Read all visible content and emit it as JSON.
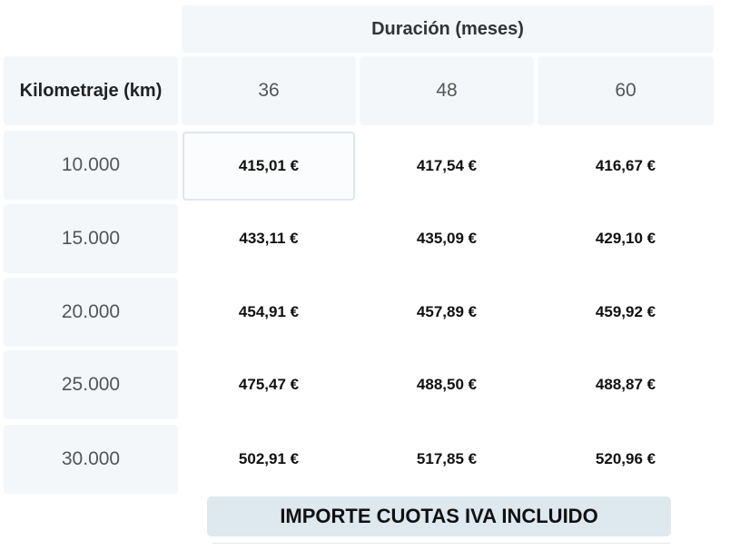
{
  "table": {
    "duration_header": "Duración (meses)",
    "km_header": "Kilometraje (km)",
    "durations": [
      "36",
      "48",
      "60"
    ],
    "rows": [
      {
        "km": "10.000",
        "prices": [
          "415,01 €",
          "417,54 €",
          "416,67 €"
        ]
      },
      {
        "km": "15.000",
        "prices": [
          "433,11 €",
          "435,09 €",
          "429,10 €"
        ]
      },
      {
        "km": "20.000",
        "prices": [
          "454,91 €",
          "457,89 €",
          "459,92 €"
        ]
      },
      {
        "km": "25.000",
        "prices": [
          "475,47 €",
          "488,50 €",
          "488,87 €"
        ]
      },
      {
        "km": "30.000",
        "prices": [
          "502,91 €",
          "517,85 €",
          "520,96 €"
        ]
      }
    ],
    "selected": {
      "row": 0,
      "col": 0
    }
  },
  "footer": {
    "note": "IMPORTE CUOTAS IVA INCLUIDO"
  },
  "colors": {
    "header_bg": "#f4f7fa",
    "footer_bg": "#dde8ef",
    "selected_border": "#dfe6ec"
  }
}
